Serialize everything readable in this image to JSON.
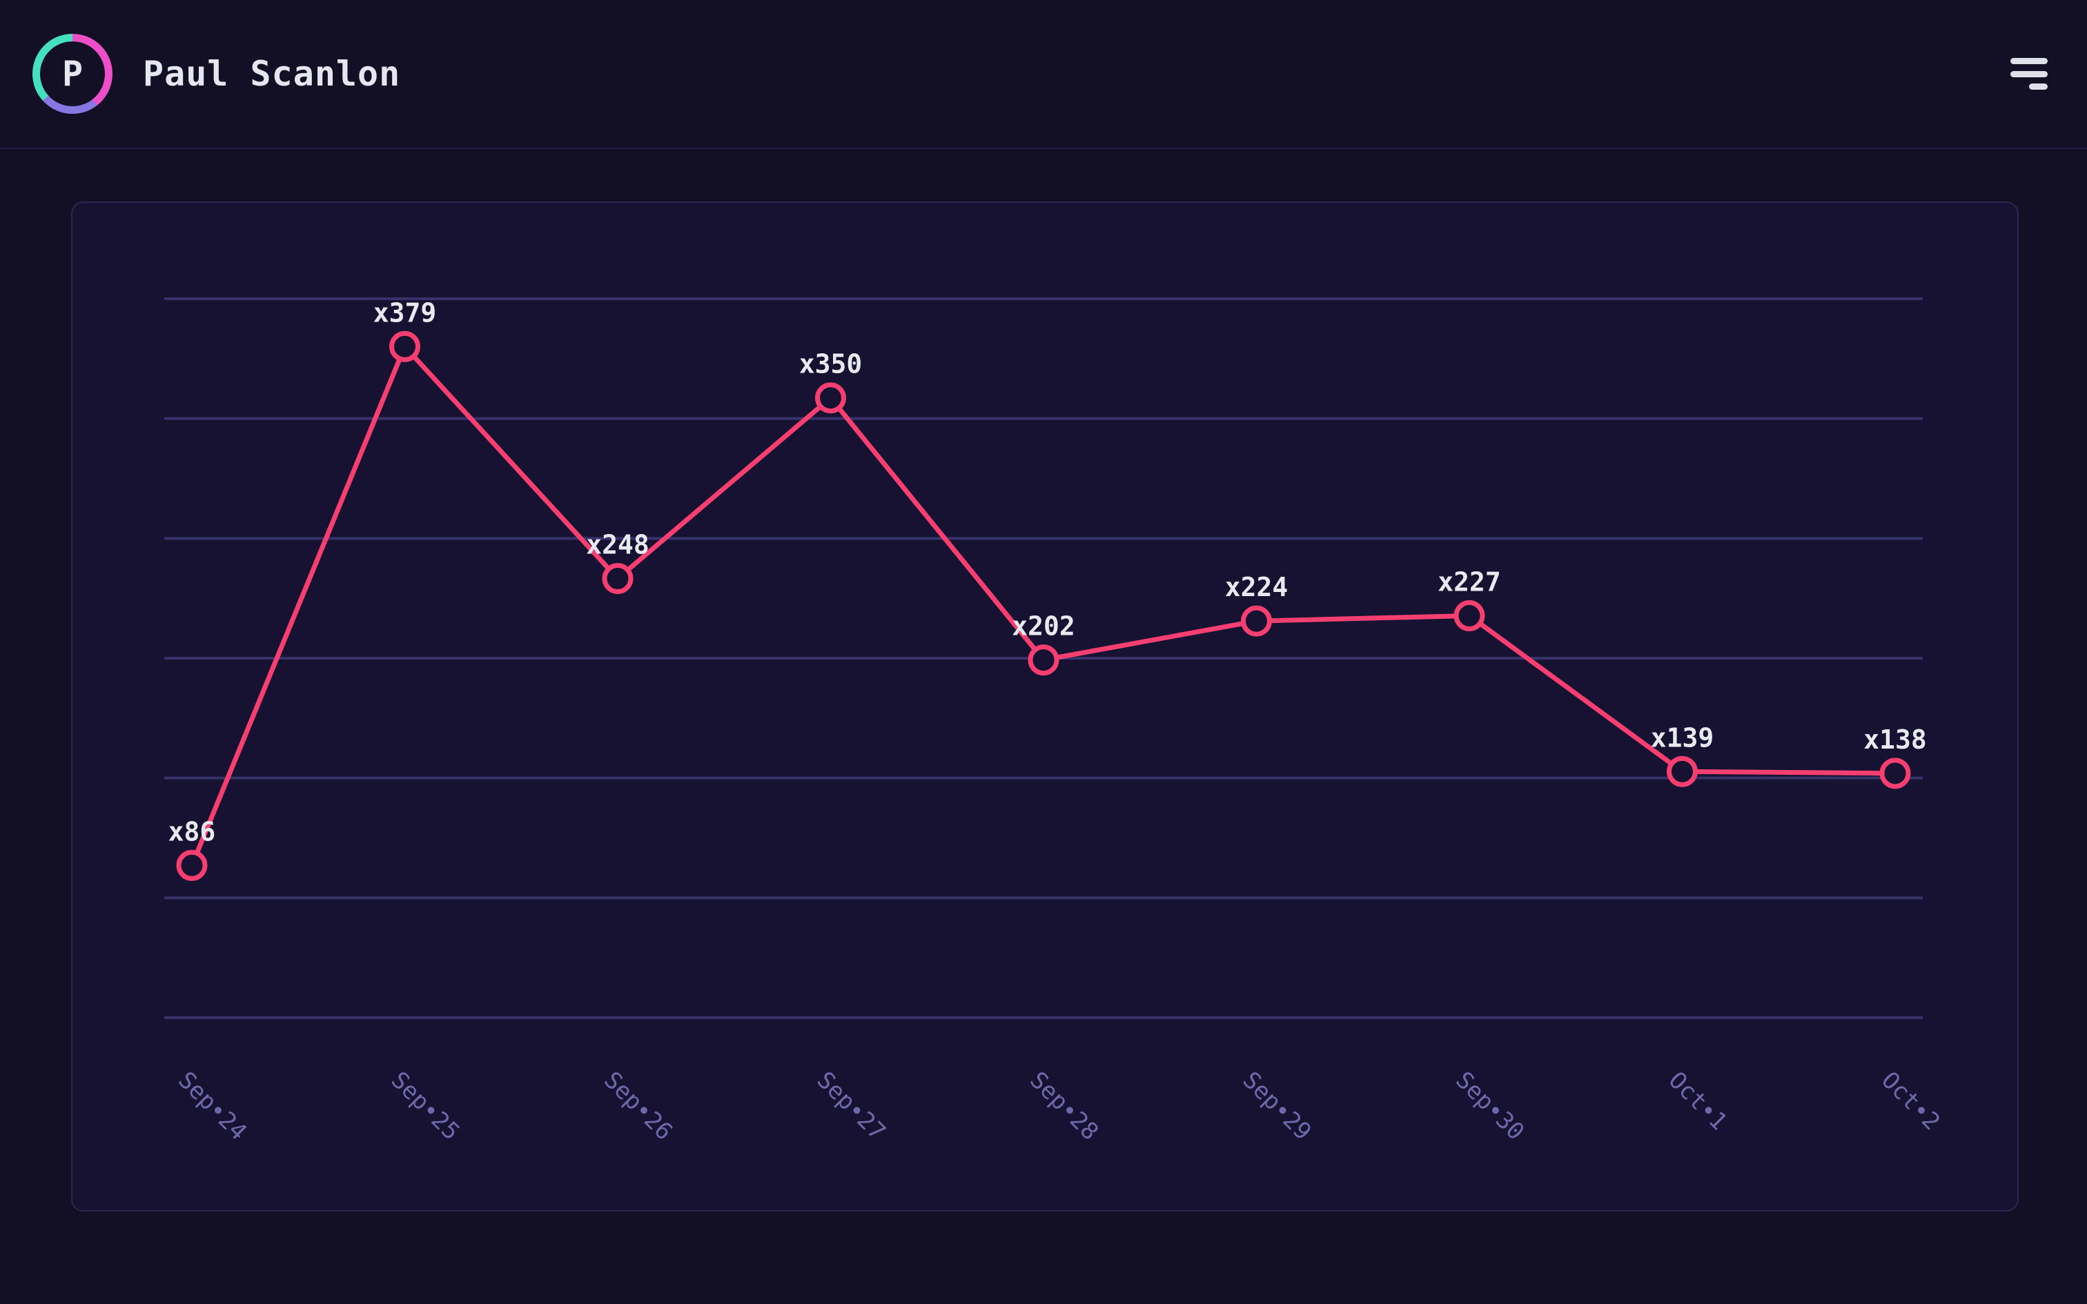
{
  "page": {
    "background": "#131026"
  },
  "header": {
    "user_name": "Paul Scanlon",
    "avatar_initial": "P",
    "avatar_ring_colors": {
      "pink": "#ec4fc8",
      "purple": "#8677e2",
      "teal": "#45e0c0"
    },
    "menu_icon": "menu-align-right-icon"
  },
  "chart_data": {
    "type": "line",
    "title": "",
    "xlabel": "",
    "ylabel": "",
    "categories": [
      "Sep•24",
      "Sep•25",
      "Sep•26",
      "Sep•27",
      "Sep•28",
      "Sep•29",
      "Sep•30",
      "Oct•1",
      "Oct•2"
    ],
    "values": [
      86,
      379,
      248,
      350,
      202,
      224,
      227,
      139,
      138
    ],
    "point_labels": [
      "x86",
      "x379",
      "x248",
      "x350",
      "x202",
      "x224",
      "x227",
      "x139",
      "x138"
    ],
    "ylim": [
      0,
      406
    ],
    "gridline_count": 7,
    "grid": "horizontal",
    "legend": "none",
    "x_label_rotation_deg": 45,
    "line_color": "#f43f70",
    "marker_fill": "#171231",
    "point_label_color": "#e9e9f2",
    "axis_label_color": "#6e69ab",
    "gridline_color": "#373269"
  }
}
